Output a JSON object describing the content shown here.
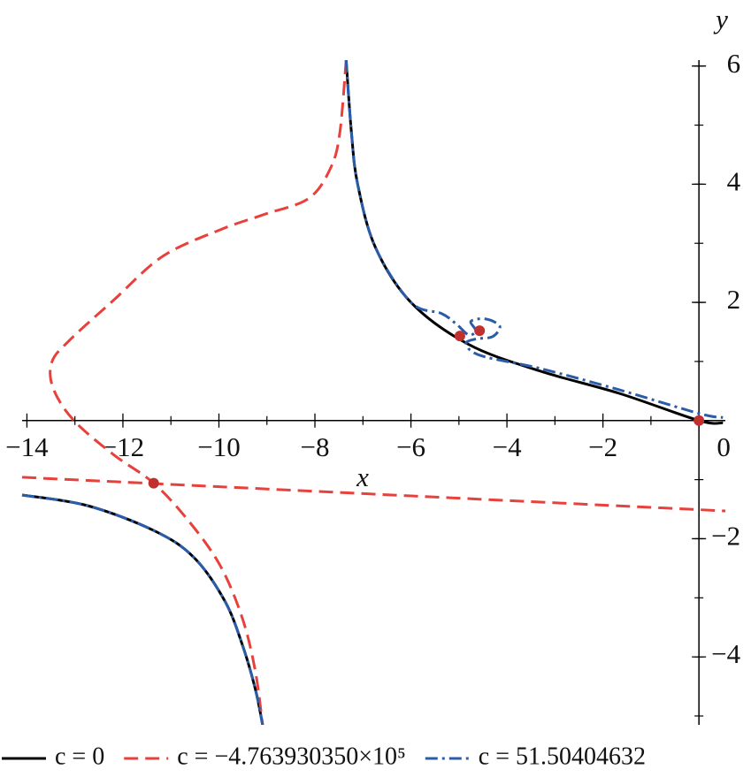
{
  "chart_data": {
    "type": "line",
    "xlabel": "x",
    "ylabel": "y",
    "xlim": [
      -14.1,
      0.55
    ],
    "ylim": [
      -5.15,
      6.1
    ],
    "xticks": [
      {
        "value": -14,
        "label": "−14"
      },
      {
        "value": -12,
        "label": "−12"
      },
      {
        "value": -10,
        "label": "−10"
      },
      {
        "value": -8,
        "label": "−8"
      },
      {
        "value": -6,
        "label": "−6"
      },
      {
        "value": -4,
        "label": "−4"
      },
      {
        "value": -2,
        "label": "−2"
      },
      0
    ],
    "yticks": [
      {
        "value": -4,
        "label": "−4"
      },
      {
        "value": -2,
        "label": "−2"
      },
      2,
      4,
      6
    ],
    "minor_ticks": true,
    "series": [
      {
        "name": "c = 0",
        "color": "#000000",
        "dash": "solid",
        "x": [
          -7.35,
          -7.24,
          -7.11,
          -6.74,
          -6.0,
          -4.8,
          -3.32,
          -1.66,
          0.0,
          0.5,
          null,
          -14.1,
          -12.74,
          -11.36,
          -10.53,
          -9.88,
          -9.51,
          -9.24,
          -9.09
        ],
        "values": [
          6.1,
          4.88,
          4.0,
          2.93,
          2.0,
          1.29,
          0.84,
          0.46,
          0.0,
          -0.04,
          null,
          -1.26,
          -1.44,
          -1.86,
          -2.31,
          -3.05,
          -3.8,
          -4.55,
          -5.15
        ]
      },
      {
        "name": "c = −4.763930350×10⁵",
        "color": "#e8413c",
        "dash": "dashed",
        "x": [
          -7.35,
          -7.48,
          -7.67,
          -8.13,
          -9.05,
          -9.97,
          -11.17,
          -12.19,
          -13.11,
          -13.48,
          -13.45,
          -13.02,
          -12.19,
          -11.36,
          -10.62,
          -9.97,
          -9.51,
          -9.24,
          -9.09,
          null,
          -14.1,
          0.55
        ],
        "values": [
          6.1,
          4.88,
          4.28,
          3.76,
          3.49,
          3.23,
          2.78,
          2.04,
          1.36,
          0.99,
          0.54,
          0.0,
          -0.58,
          -1.06,
          -1.71,
          -2.46,
          -3.35,
          -4.25,
          -5.15,
          null,
          -0.96,
          -1.53
        ]
      },
      {
        "name": "c = 51.50404632",
        "color": "#2a5caa",
        "dash": "dashdot",
        "x": [
          -7.35,
          -7.24,
          -7.11,
          -6.74,
          -6.0,
          -5.36,
          -5.05,
          -4.8,
          -4.65,
          -4.75,
          -4.45,
          -4.15,
          -4.3,
          -4.65,
          -4.85,
          -4.55,
          -3.3,
          -1.66,
          0.0,
          0.5,
          null,
          -14.1,
          -12.74,
          -11.36,
          -10.53,
          -9.88,
          -9.51,
          -9.24,
          -9.09
        ],
        "values": [
          6.1,
          4.88,
          4.0,
          2.93,
          2.0,
          1.81,
          1.63,
          1.45,
          1.52,
          1.68,
          1.72,
          1.6,
          1.42,
          1.38,
          1.3,
          1.1,
          0.88,
          0.52,
          0.12,
          0.05,
          null,
          -1.26,
          -1.44,
          -1.86,
          -2.31,
          -3.05,
          -3.8,
          -4.55,
          -5.15
        ]
      }
    ],
    "points": {
      "color": "#c0302f",
      "x": [
        -11.36,
        -4.98,
        -4.57,
        0.0
      ],
      "y": [
        -1.06,
        1.43,
        1.52,
        0.0
      ]
    }
  }
}
